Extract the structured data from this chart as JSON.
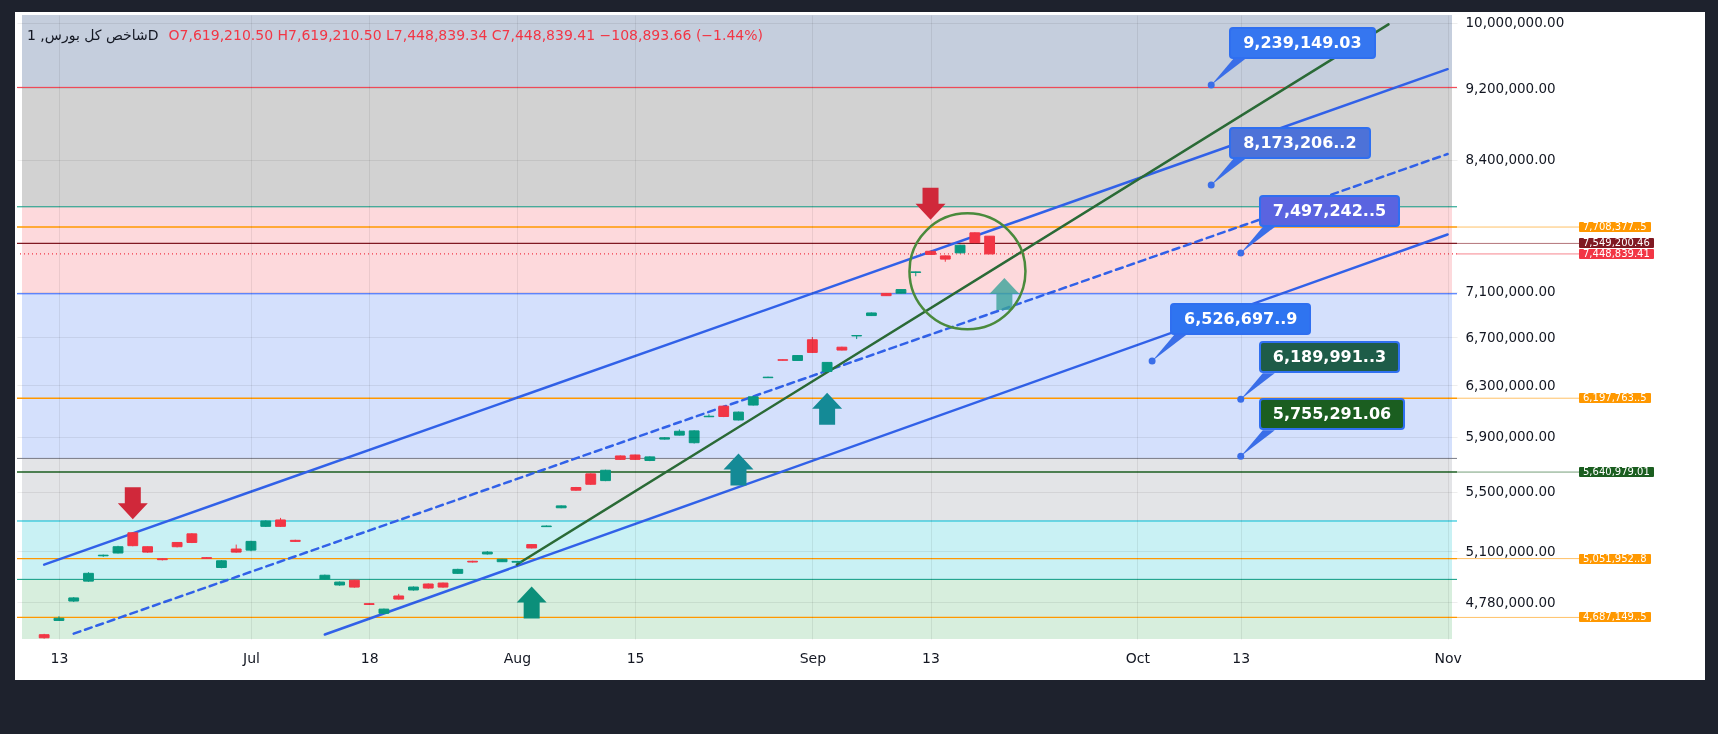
{
  "chart_data": {
    "type": "candlestick",
    "title": "شاخص کل بورس, 1D",
    "subtitle": "O7,619,210.50 H7,619,210.50 L7,448,839.34 C7,448,839.41 −108,893.66 (−1.44%)",
    "categories": [
      null,
      "13",
      null,
      null,
      null,
      null,
      null,
      null,
      null,
      null,
      null,
      null,
      null,
      null,
      "Jul",
      null,
      null,
      null,
      null,
      null,
      null,
      null,
      "18",
      null,
      null,
      null,
      null,
      null,
      null,
      null,
      null,
      null,
      "Aug",
      null,
      null,
      null,
      null,
      null,
      null,
      null,
      "15",
      null,
      null,
      null,
      null,
      null,
      null,
      null,
      null,
      null,
      null,
      null,
      "Sep",
      null,
      null,
      null,
      null,
      null,
      null,
      null,
      "13",
      null,
      null,
      null,
      null,
      null,
      null,
      null,
      null,
      null,
      null,
      null,
      null,
      null,
      "Oct",
      null,
      null,
      null,
      null,
      null,
      null,
      "13",
      null,
      null,
      null,
      null,
      null,
      null,
      null,
      null,
      null,
      null,
      null,
      null,
      null,
      "Nov"
    ],
    "ohlc": [
      [
        4585000,
        4590000,
        4562000,
        4567000
      ],
      [
        4669000,
        4694000,
        4667000,
        4682000
      ],
      [
        4786000,
        4810000,
        4780000,
        4805000
      ],
      [
        4909000,
        4965000,
        4905000,
        4958000
      ],
      [
        5070000,
        5078000,
        5063000,
        5074000
      ],
      [
        5088000,
        5135000,
        5085000,
        5129000
      ],
      [
        5221000,
        5225000,
        5132000,
        5136000
      ],
      [
        5129000,
        5130000,
        5090000,
        5094000
      ],
      [
        5051000,
        5055000,
        5040000,
        5045000
      ],
      [
        5157000,
        5160000,
        5125000,
        5129000
      ],
      [
        5214000,
        5218000,
        5153000,
        5157000
      ],
      [
        5058000,
        5062000,
        5050000,
        5053000
      ],
      [
        4995000,
        5042000,
        4990000,
        5038000
      ],
      [
        5114000,
        5143000,
        5090000,
        5094000
      ],
      [
        5107000,
        5168000,
        5100000,
        5164000
      ],
      [
        5264000,
        5305000,
        5260000,
        5300000
      ],
      [
        5307000,
        5321000,
        5260000,
        5264000
      ],
      [
        5171000,
        5175000,
        5160000,
        5164000
      ],
      null,
      [
        4921000,
        4950000,
        4917000,
        4946000
      ],
      [
        4885000,
        4907000,
        4880000,
        4903000
      ],
      [
        4915000,
        4918000,
        4868000,
        4872000
      ],
      [
        4770000,
        4772000,
        4762000,
        4765000
      ],
      [
        4712000,
        4740000,
        4708000,
        4737000
      ],
      [
        4817000,
        4830000,
        4795000,
        4798000
      ],
      [
        4854000,
        4876000,
        4850000,
        4872000
      ],
      [
        4891000,
        4895000,
        4862000,
        4866000
      ],
      [
        4897000,
        4900000,
        4868000,
        4872000
      ],
      [
        4958000,
        4987000,
        4955000,
        4983000
      ],
      [
        5035000,
        5038000,
        5027000,
        5030000
      ],
      [
        5082000,
        5100000,
        5078000,
        5094000
      ],
      [
        5032000,
        5050000,
        5030000,
        5048000
      ],
      [
        5029000,
        5036000,
        5026000,
        5034000
      ],
      [
        5143000,
        5146000,
        5118000,
        5121000
      ],
      [
        5262000,
        5270000,
        5260000,
        5266000
      ],
      [
        5390000,
        5406000,
        5387000,
        5403000
      ],
      [
        5531000,
        5535000,
        5508000,
        5512000
      ],
      [
        5628000,
        5632000,
        5550000,
        5554000
      ],
      [
        5580000,
        5658000,
        5576000,
        5654000
      ],
      [
        5758000,
        5762000,
        5730000,
        5733000
      ],
      [
        5765000,
        5768000,
        5730000,
        5733000
      ],
      [
        5725000,
        5755000,
        5720000,
        5751000
      ],
      [
        5883000,
        5896000,
        5880000,
        5893000
      ],
      [
        5913000,
        5956000,
        5910000,
        5942000
      ],
      [
        5856000,
        5950000,
        5850000,
        5945000
      ],
      [
        6053000,
        6072000,
        6050000,
        6057000
      ],
      [
        6135000,
        6140000,
        6050000,
        6055000
      ],
      [
        6028000,
        6093000,
        6025000,
        6089000
      ],
      [
        6144000,
        6213000,
        6140000,
        6209000
      ],
      [
        6362000,
        6370000,
        6360000,
        6366000
      ],
      [
        6509000,
        6511000,
        6503000,
        6505000
      ],
      [
        6503000,
        6548000,
        6500000,
        6544000
      ],
      [
        6677000,
        6700000,
        6565000,
        6570000
      ],
      [
        6413000,
        6490000,
        6410000,
        6487000
      ],
      [
        6614000,
        6618000,
        6587000,
        6590000
      ],
      [
        6710000,
        6716000,
        6683000,
        6713000
      ],
      [
        6886000,
        6913000,
        6882000,
        6909000
      ],
      [
        7083000,
        7087000,
        7060000,
        7063000
      ],
      [
        7085000,
        7122000,
        7082000,
        7118000
      ],
      [
        7275000,
        7283000,
        7240000,
        7280000
      ],
      [
        7474000,
        7478000,
        7440000,
        7444000
      ],
      [
        7430000,
        7434000,
        7375000,
        7400000
      ],
      [
        7459000,
        7536000,
        7455000,
        7532000
      ],
      [
        7652000,
        7656000,
        7552000,
        7558000
      ],
      [
        7619210.5,
        7619210.5,
        7448839.34,
        7448839.41
      ],
      null,
      null,
      null,
      null,
      null,
      null,
      null,
      null,
      null,
      null,
      null,
      null,
      null,
      null,
      null,
      null,
      null,
      null,
      null,
      null,
      null,
      null,
      null,
      null,
      null,
      null,
      null,
      null,
      null,
      null,
      null
    ],
    "series": [
      {
        "type": "line",
        "color": "#3161e8",
        "values": [
          5013000,
          null,
          null,
          null,
          null,
          null,
          null,
          null,
          null,
          null,
          null,
          null,
          null,
          null,
          null,
          null,
          null,
          null,
          null,
          null,
          null,
          null,
          null,
          null,
          null,
          null,
          null,
          null,
          null,
          null,
          null,
          null,
          null,
          null,
          null,
          null,
          null,
          null,
          null,
          null,
          null,
          null,
          null,
          null,
          null,
          null,
          null,
          null,
          null,
          null,
          null,
          null,
          null,
          null,
          null,
          null,
          null,
          null,
          null,
          null,
          null,
          null,
          null,
          null,
          null,
          null,
          null,
          null,
          null,
          null,
          null,
          null,
          null,
          null,
          null,
          null,
          null,
          null,
          null,
          null,
          null,
          null,
          null,
          null,
          null,
          null,
          null,
          null,
          null,
          null,
          null,
          null,
          null,
          null,
          null,
          9426000
        ]
      },
      {
        "type": "line",
        "color": "#3161e8",
        "line_style": "dashed",
        "values": [
          null,
          null,
          4591000,
          null,
          null,
          null,
          null,
          null,
          null,
          null,
          null,
          null,
          null,
          null,
          null,
          null,
          null,
          null,
          null,
          null,
          null,
          null,
          null,
          null,
          null,
          null,
          null,
          null,
          null,
          null,
          null,
          null,
          null,
          null,
          null,
          null,
          null,
          null,
          null,
          null,
          null,
          null,
          null,
          null,
          null,
          null,
          null,
          null,
          null,
          null,
          null,
          null,
          null,
          null,
          null,
          null,
          null,
          null,
          null,
          null,
          null,
          null,
          null,
          null,
          null,
          null,
          null,
          null,
          null,
          null,
          null,
          null,
          null,
          null,
          null,
          null,
          null,
          null,
          null,
          null,
          null,
          null,
          null,
          null,
          null,
          null,
          null,
          null,
          null,
          null,
          null,
          null,
          null,
          null,
          null,
          8460000
        ]
      },
      {
        "type": "line",
        "color": "#3161e8",
        "values": [
          null,
          null,
          null,
          null,
          null,
          null,
          null,
          null,
          null,
          null,
          null,
          null,
          null,
          null,
          null,
          null,
          null,
          null,
          null,
          4586000,
          null,
          null,
          null,
          null,
          null,
          null,
          null,
          null,
          null,
          null,
          null,
          null,
          null,
          null,
          null,
          null,
          null,
          null,
          null,
          null,
          null,
          null,
          null,
          null,
          null,
          null,
          null,
          null,
          null,
          null,
          null,
          null,
          null,
          null,
          null,
          null,
          null,
          null,
          null,
          null,
          null,
          null,
          null,
          null,
          null,
          null,
          null,
          null,
          null,
          null,
          null,
          null,
          null,
          null,
          null,
          null,
          null,
          null,
          null,
          null,
          null,
          null,
          null,
          null,
          null,
          null,
          null,
          null,
          null,
          null,
          null,
          null,
          null,
          null,
          null,
          7636000
        ]
      },
      {
        "type": "line",
        "color": "#2a6a36",
        "values": [
          null,
          null,
          null,
          null,
          null,
          null,
          null,
          null,
          null,
          null,
          null,
          null,
          null,
          null,
          null,
          null,
          null,
          null,
          null,
          null,
          null,
          null,
          null,
          null,
          null,
          null,
          null,
          null,
          null,
          null,
          null,
          null,
          5014000,
          null,
          null,
          null,
          null,
          null,
          null,
          null,
          null,
          null,
          null,
          null,
          null,
          null,
          null,
          null,
          null,
          null,
          null,
          null,
          null,
          null,
          null,
          null,
          null,
          null,
          null,
          null,
          null,
          null,
          null,
          null,
          null,
          null,
          null,
          null,
          null,
          null,
          null,
          null,
          null,
          null,
          null,
          null,
          null,
          null,
          null,
          null,
          null,
          null,
          null,
          null,
          null,
          null,
          null,
          null,
          null,
          null,
          null,
          9980000,
          null,
          null,
          null,
          null
        ]
      }
    ],
    "ylim": [
      4560000,
      10100000
    ],
    "yticks": [
      {
        "value": 4780000,
        "label": "4,780,000.00"
      },
      {
        "value": 5100000,
        "label": "5,100,000.00"
      },
      {
        "value": 5500000,
        "label": "5,500,000.00"
      },
      {
        "value": 5900000,
        "label": "5,900,000.00"
      },
      {
        "value": 6300000,
        "label": "6,300,000.00"
      },
      {
        "value": 6700000,
        "label": "6,700,000.00"
      },
      {
        "value": 7100000,
        "label": "7,100,000.00"
      },
      {
        "value": 8400000,
        "label": "8,400,000.00"
      },
      {
        "value": 9200000,
        "label": "9,200,000.00"
      },
      {
        "value": 10000000,
        "label": "10,000,000.00"
      }
    ],
    "log": true,
    "grid": true,
    "bands": [
      {
        "axis": "y",
        "from": 9210000,
        "to": 10100000,
        "color": "#c5cedd"
      },
      {
        "axis": "y",
        "from": 7910000,
        "to": 9210000,
        "color": "#d2d2d2"
      },
      {
        "axis": "y",
        "from": 7080000,
        "to": 7910000,
        "color": "#fdd9dc"
      },
      {
        "axis": "y",
        "from": 5740000,
        "to": 7080000,
        "color": "#d4e0fc"
      },
      {
        "axis": "y",
        "from": 5300000,
        "to": 5740000,
        "color": "#e3e4e7"
      },
      {
        "axis": "y",
        "from": 4920000,
        "to": 5300000,
        "color": "#c9f1f4"
      },
      {
        "axis": "y",
        "from": 4560000,
        "to": 4920000,
        "color": "#d7eedd"
      }
    ],
    "ref_lines": [
      {
        "axis": "y",
        "value": 9210000,
        "color": "#f23645"
      },
      {
        "axis": "y",
        "value": 7910000,
        "color": "#089981"
      },
      {
        "axis": "y",
        "value": 7708377,
        "label": "7,708,377..5",
        "color": "#ff9800"
      },
      {
        "axis": "y",
        "value": 7549200.46,
        "label": "7,549,200.46",
        "color": "#801922"
      },
      {
        "axis": "y",
        "value": 7448839.41,
        "label": "7,448,839.41",
        "color": "#f23645",
        "line_style": "dotted"
      },
      {
        "axis": "y",
        "value": 7080000,
        "color": "#2962ff"
      },
      {
        "axis": "y",
        "value": 6197763,
        "label": "6,197,763..5",
        "color": "#ff9800"
      },
      {
        "axis": "y",
        "value": 5740000,
        "color": "#787b86"
      },
      {
        "axis": "y",
        "value": 5640979.01,
        "label": "5,640,979.01",
        "color": "#1b5e20"
      },
      {
        "axis": "y",
        "value": 5300000,
        "color": "#00bcd4"
      },
      {
        "axis": "y",
        "value": 5051952,
        "label": "5,051,952..8",
        "color": "#ff9800"
      },
      {
        "axis": "y",
        "value": 4920000,
        "color": "#089981"
      },
      {
        "axis": "y",
        "value": 4687149,
        "label": "4,687,149..5",
        "color": "#ff9800"
      }
    ],
    "annotations": [
      {
        "text": "9,239,149.03",
        "y": 9239149.03
      },
      "8,173,206..2",
      "7,497,242..5",
      "6,526,697..9",
      {
        "text": "6,189,991..3",
        "y": 6189991
      },
      {
        "text": "5,755,291.06",
        "y": 5755291.06
      }
    ]
  }
}
